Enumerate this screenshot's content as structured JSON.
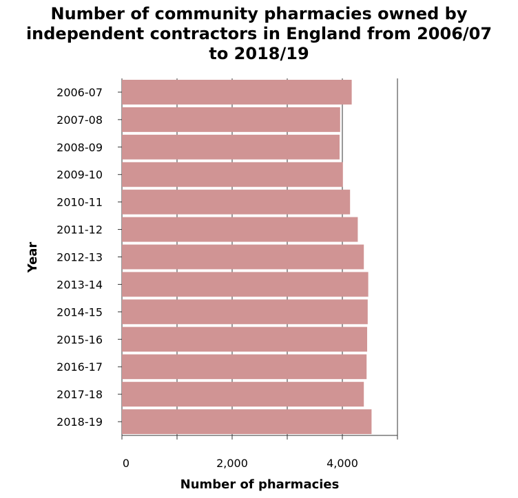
{
  "chart_data": {
    "type": "bar",
    "orientation": "horizontal",
    "title_lines": [
      "Number of community pharmacies owned by",
      "independent contractors in England from 2006/07",
      "to 2018/19"
    ],
    "xlabel": "Number of pharmacies",
    "ylabel": "Year",
    "xlim": [
      0,
      5000
    ],
    "x_ticks": [
      0,
      1000,
      2000,
      3000,
      4000,
      5000
    ],
    "x_tick_labels": [
      "0",
      "",
      "2,000",
      "",
      "4,000",
      ""
    ],
    "categories": [
      "2006-07",
      "2007-08",
      "2008-09",
      "2009-10",
      "2010-11",
      "2011-12",
      "2012-13",
      "2013-14",
      "2014-15",
      "2015-16",
      "2016-17",
      "2017-18",
      "2018-19"
    ],
    "values": [
      4170,
      3960,
      3950,
      4010,
      4140,
      4280,
      4390,
      4470,
      4460,
      4450,
      4440,
      4390,
      4530
    ],
    "grid": "vertical",
    "bar_color": "#d09494",
    "grid_color": "#333333"
  }
}
